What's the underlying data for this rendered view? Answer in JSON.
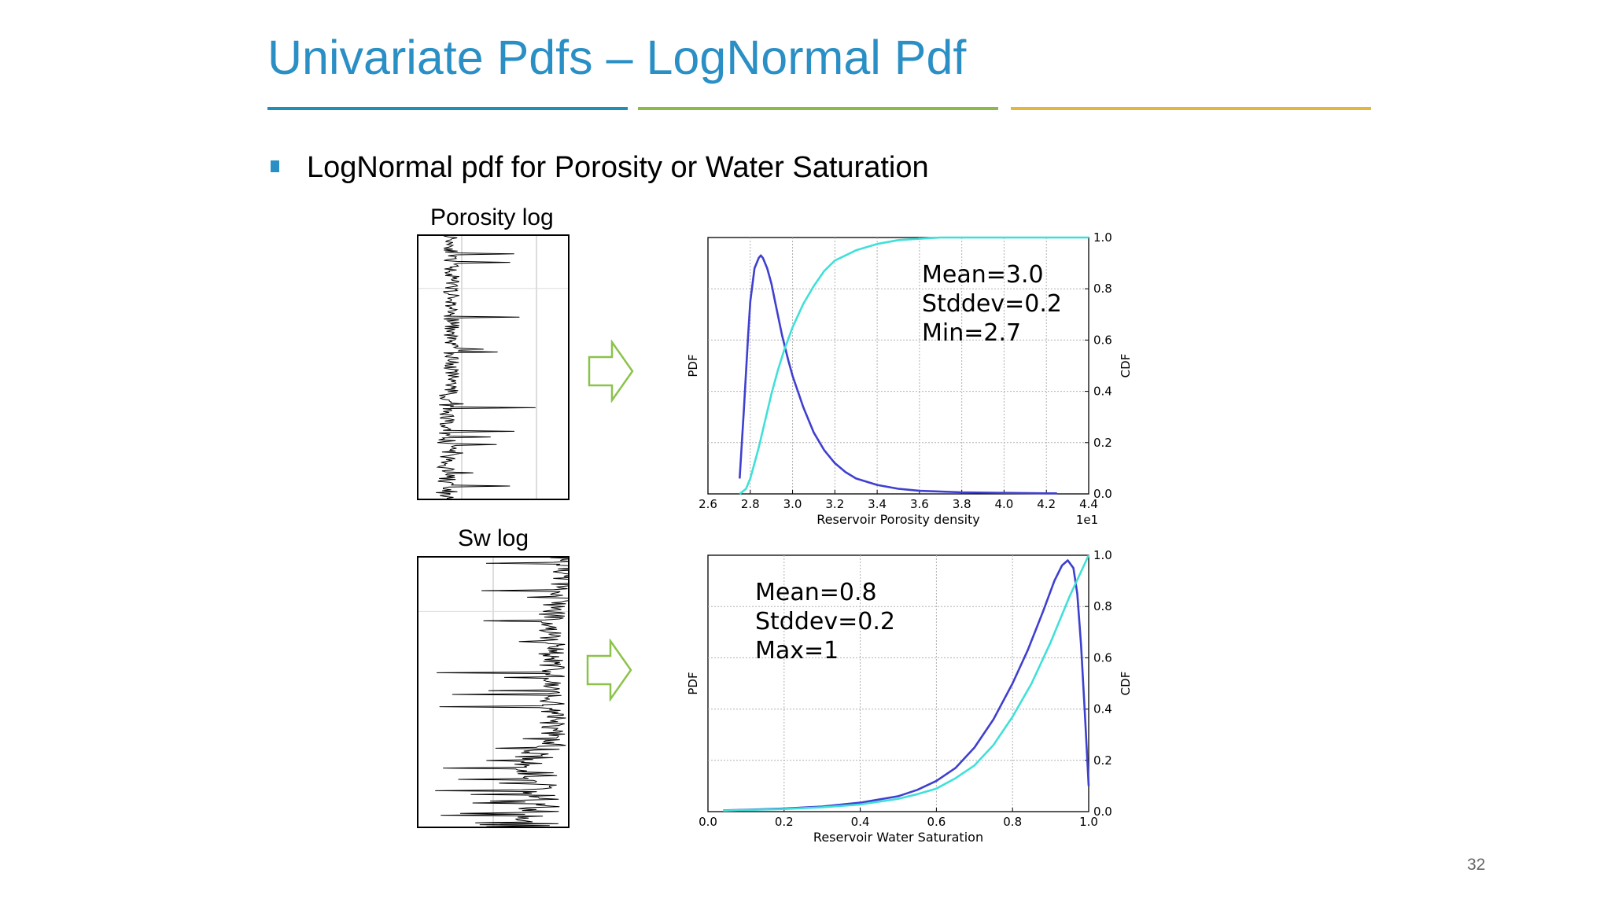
{
  "title": "Univariate Pdfs – LogNormal Pdf",
  "title_rule_colors": [
    "#1f8fb8",
    "#8bb94a",
    "#e2b73c"
  ],
  "bullet_color": "#2a8fc5",
  "bullet": "LogNormal pdf for Porosity or Water Saturation",
  "porosity_log_label": "Porosity log",
  "sw_log_label": "Sw log",
  "page_number": "32",
  "colors": {
    "pdf": "#3f3fd0",
    "cdf": "#40e0d8",
    "grid": "#b0b0b0",
    "arrow": "#8bc34a"
  },
  "chart_data": [
    {
      "type": "line",
      "name": "porosity",
      "xlabel": "Reservoir Porosity density",
      "ylabel_left": "PDF",
      "ylabel_right": "CDF",
      "offset_text": "1e1",
      "xlim": [
        2.6,
        4.4
      ],
      "ylim": [
        0.0,
        1.0
      ],
      "xticks": [
        "2.6",
        "2.8",
        "3.0",
        "3.2",
        "3.4",
        "3.6",
        "3.8",
        "4.0",
        "4.2",
        "4.4"
      ],
      "yticks_right": [
        "0.0",
        "0.2",
        "0.4",
        "0.6",
        "0.8",
        "1.0"
      ],
      "annotation": [
        "Mean=3.0",
        "Stddev=0.2",
        "Min=2.7"
      ],
      "series": [
        {
          "name": "PDF",
          "x": [
            2.75,
            2.77,
            2.79,
            2.8,
            2.82,
            2.84,
            2.85,
            2.86,
            2.88,
            2.9,
            2.92,
            2.95,
            2.98,
            3.0,
            3.05,
            3.1,
            3.15,
            3.2,
            3.25,
            3.3,
            3.4,
            3.5,
            3.6,
            3.8,
            4.0,
            4.2,
            4.25
          ],
          "y": [
            0.06,
            0.33,
            0.62,
            0.75,
            0.88,
            0.92,
            0.93,
            0.92,
            0.88,
            0.82,
            0.74,
            0.62,
            0.52,
            0.46,
            0.34,
            0.24,
            0.17,
            0.12,
            0.085,
            0.06,
            0.035,
            0.02,
            0.012,
            0.006,
            0.004,
            0.002,
            0.002
          ]
        },
        {
          "name": "CDF",
          "x": [
            2.75,
            2.78,
            2.8,
            2.82,
            2.84,
            2.86,
            2.88,
            2.9,
            2.93,
            2.96,
            3.0,
            3.05,
            3.1,
            3.15,
            3.2,
            3.3,
            3.4,
            3.5,
            3.6,
            3.7,
            3.8,
            4.0,
            4.2,
            4.4
          ],
          "y": [
            0.0,
            0.02,
            0.06,
            0.12,
            0.18,
            0.25,
            0.32,
            0.39,
            0.48,
            0.56,
            0.65,
            0.74,
            0.81,
            0.87,
            0.91,
            0.95,
            0.975,
            0.99,
            0.995,
            1.0,
            1.0,
            1.0,
            1.0,
            1.0
          ]
        }
      ]
    },
    {
      "type": "line",
      "name": "water_saturation",
      "xlabel": "Reservoir Water Saturation",
      "ylabel_left": "PDF",
      "ylabel_right": "CDF",
      "xlim": [
        0.0,
        1.0
      ],
      "ylim": [
        0.0,
        1.0
      ],
      "xticks": [
        "0.0",
        "0.2",
        "0.4",
        "0.6",
        "0.8",
        "1.0"
      ],
      "yticks_right": [
        "0.0",
        "0.2",
        "0.4",
        "0.6",
        "0.8",
        "1.0"
      ],
      "annotation": [
        "Mean=0.8",
        "Stddev=0.2",
        "Max=1"
      ],
      "series": [
        {
          "name": "PDF",
          "x": [
            0.04,
            0.1,
            0.2,
            0.3,
            0.4,
            0.5,
            0.55,
            0.6,
            0.65,
            0.7,
            0.75,
            0.8,
            0.84,
            0.88,
            0.91,
            0.93,
            0.945,
            0.96,
            0.97,
            0.98,
            0.99,
            1.0
          ],
          "y": [
            0.005,
            0.007,
            0.012,
            0.02,
            0.035,
            0.06,
            0.085,
            0.12,
            0.17,
            0.25,
            0.36,
            0.5,
            0.63,
            0.78,
            0.9,
            0.96,
            0.98,
            0.95,
            0.85,
            0.65,
            0.38,
            0.1
          ]
        },
        {
          "name": "CDF",
          "x": [
            0.04,
            0.1,
            0.2,
            0.3,
            0.4,
            0.5,
            0.55,
            0.6,
            0.65,
            0.7,
            0.75,
            0.8,
            0.85,
            0.9,
            0.95,
            1.0
          ],
          "y": [
            0.004,
            0.006,
            0.01,
            0.017,
            0.028,
            0.05,
            0.068,
            0.09,
            0.13,
            0.18,
            0.26,
            0.37,
            0.5,
            0.66,
            0.84,
            1.0
          ]
        }
      ]
    }
  ]
}
